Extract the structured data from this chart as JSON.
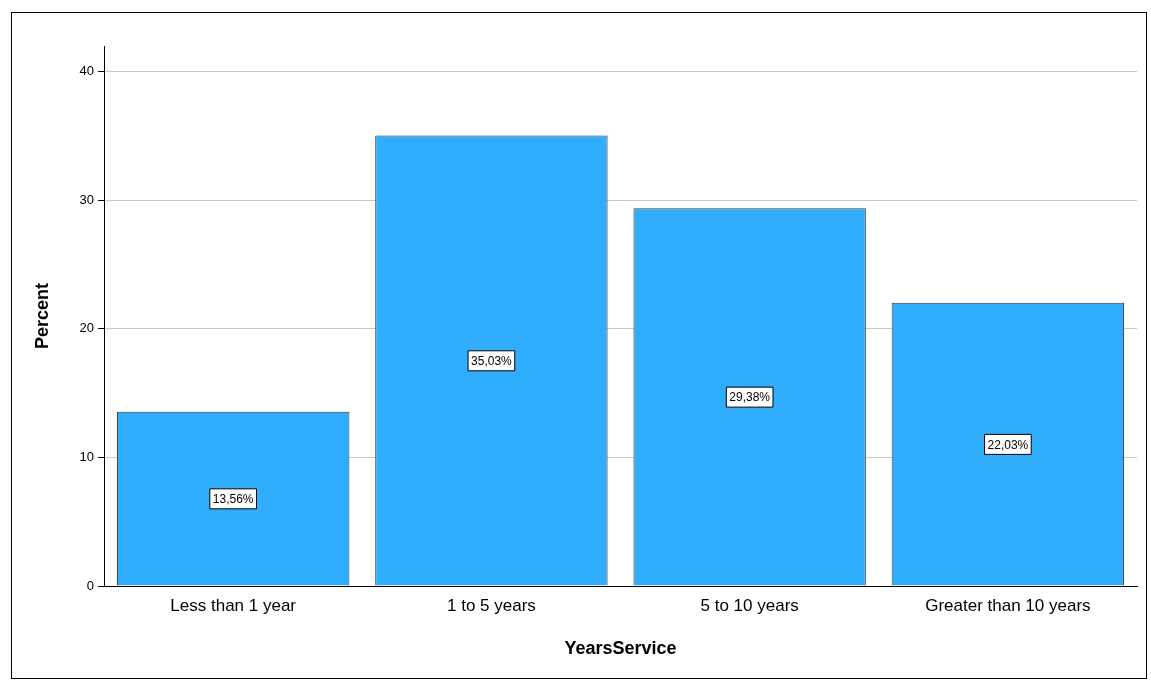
{
  "chart_data": {
    "type": "bar",
    "xlabel": "YearsService",
    "ylabel": "Percent",
    "categories": [
      "Less than 1 year",
      "1 to 5 years",
      "5 to 10 years",
      "Greater than 10 years"
    ],
    "values": [
      13.56,
      35.03,
      29.38,
      22.03
    ],
    "color": "#31adfe",
    "value_labels": [
      "13,56%",
      "35,03%",
      "29,38%",
      "22,03%"
    ],
    "ylim": [
      0,
      42
    ],
    "yticks": [
      0,
      10,
      20,
      30,
      40
    ],
    "grid": "y",
    "legend": false
  }
}
